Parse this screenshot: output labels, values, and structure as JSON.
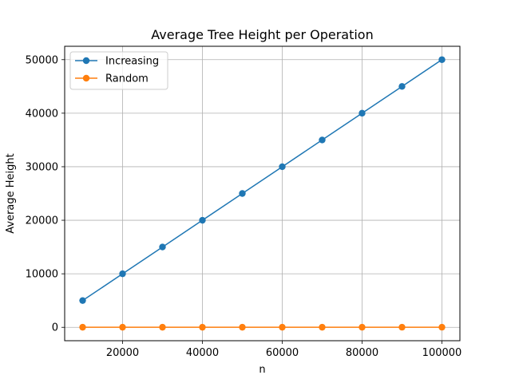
{
  "chart_data": {
    "type": "line",
    "title": "Average Tree Height per Operation",
    "xlabel": "n",
    "ylabel": "Average Height",
    "x": [
      10000,
      20000,
      30000,
      40000,
      50000,
      60000,
      70000,
      80000,
      90000,
      100000
    ],
    "series": [
      {
        "name": "Increasing",
        "color": "#1f77b4",
        "values": [
          5000,
          10000,
          15000,
          20000,
          25000,
          30000,
          35000,
          40000,
          45000,
          50000
        ]
      },
      {
        "name": "Random",
        "color": "#ff7f0e",
        "values": [
          14,
          15,
          16,
          16,
          17,
          17,
          17,
          17,
          18,
          18
        ]
      }
    ],
    "xlim": [
      5500,
      104500
    ],
    "ylim": [
      -2500,
      52500
    ],
    "xticks": [
      20000,
      40000,
      60000,
      80000,
      100000
    ],
    "yticks": [
      0,
      10000,
      20000,
      30000,
      40000,
      50000
    ],
    "grid": true,
    "legend_position": "top-left"
  }
}
